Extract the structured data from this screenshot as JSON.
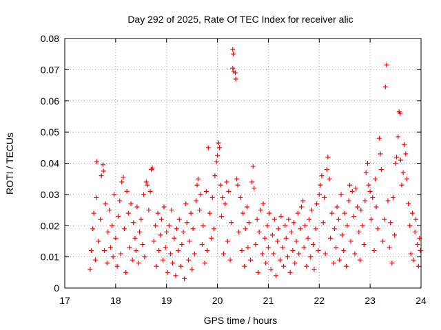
{
  "chart_data": {
    "type": "scatter",
    "title": "Day 292 of 2025, Rate Of TEC Index for receiver alic",
    "xlabel": "GPS time / hours",
    "ylabel": "ROTI / TECUs",
    "xlim": [
      17,
      24
    ],
    "ylim": [
      0,
      0.08
    ],
    "x_ticks": [
      17,
      18,
      19,
      20,
      21,
      22,
      23,
      24
    ],
    "x_tick_labels": [
      "17",
      "18",
      "19",
      "20",
      "21",
      "22",
      "23",
      "24"
    ],
    "y_ticks": [
      0,
      0.01,
      0.02,
      0.03,
      0.04,
      0.05,
      0.06,
      0.07,
      0.08
    ],
    "y_tick_labels": [
      "0",
      "0.01",
      "0.02",
      "0.03",
      "0.04",
      "0.05",
      "0.06",
      "0.07",
      "0.08"
    ],
    "grid": true,
    "marker": "+",
    "color": "#ff0000",
    "series": [
      {
        "name": "ROTI",
        "points": [
          [
            17.5,
            0.006
          ],
          [
            17.52,
            0.012
          ],
          [
            17.55,
            0.019
          ],
          [
            17.57,
            0.024
          ],
          [
            17.6,
            0.009
          ],
          [
            17.62,
            0.029
          ],
          [
            17.63,
            0.0405
          ],
          [
            17.66,
            0.015
          ],
          [
            17.7,
            0.022
          ],
          [
            17.72,
            0.036
          ],
          [
            17.75,
            0.0395
          ],
          [
            17.76,
            0.0375
          ],
          [
            17.78,
            0.012
          ],
          [
            17.8,
            0.027
          ],
          [
            17.83,
            0.008
          ],
          [
            17.85,
            0.018
          ],
          [
            17.88,
            0.025
          ],
          [
            17.9,
            0.013
          ],
          [
            17.93,
            0.02
          ],
          [
            17.95,
            0.01
          ],
          [
            17.97,
            0.03
          ],
          [
            18.0,
            0.016
          ],
          [
            18.03,
            0.007
          ],
          [
            18.05,
            0.023
          ],
          [
            18.08,
            0.028
          ],
          [
            18.1,
            0.011
          ],
          [
            18.12,
            0.034
          ],
          [
            18.15,
            0.0355
          ],
          [
            18.17,
            0.019
          ],
          [
            18.2,
            0.005
          ],
          [
            18.22,
            0.031
          ],
          [
            18.25,
            0.024
          ],
          [
            18.27,
            0.013
          ],
          [
            18.3,
            0.027
          ],
          [
            18.33,
            0.009
          ],
          [
            18.35,
            0.021
          ],
          [
            18.38,
            0.016
          ],
          [
            18.4,
            0.012
          ],
          [
            18.42,
            0.026
          ],
          [
            18.45,
            0.008
          ],
          [
            18.47,
            0.018
          ],
          [
            18.5,
            0.022
          ],
          [
            18.53,
            0.014
          ],
          [
            18.55,
            0.03
          ],
          [
            18.57,
            0.01
          ],
          [
            18.6,
            0.034
          ],
          [
            18.62,
            0.033
          ],
          [
            18.65,
            0.025
          ],
          [
            18.68,
            0.031
          ],
          [
            18.7,
            0.038
          ],
          [
            18.72,
            0.0385
          ],
          [
            18.75,
            0.015
          ],
          [
            18.78,
            0.02
          ],
          [
            18.8,
            0.007
          ],
          [
            18.83,
            0.024
          ],
          [
            18.85,
            0.012
          ],
          [
            18.88,
            0.017
          ],
          [
            18.9,
            0.022
          ],
          [
            18.93,
            0.009
          ],
          [
            18.95,
            0.026
          ],
          [
            18.98,
            0.013
          ],
          [
            19.0,
            0.018
          ],
          [
            19.02,
            0.005
          ],
          [
            19.05,
            0.02
          ],
          [
            19.08,
            0.011
          ],
          [
            19.1,
            0.025
          ],
          [
            19.12,
            0.008
          ],
          [
            19.15,
            0.016
          ],
          [
            19.18,
            0.004
          ],
          [
            19.2,
            0.019
          ],
          [
            19.23,
            0.012
          ],
          [
            19.25,
            0.022
          ],
          [
            19.28,
            0.007
          ],
          [
            19.3,
            0.014
          ],
          [
            19.33,
            0.018
          ],
          [
            19.35,
            0.003
          ],
          [
            19.38,
            0.027
          ],
          [
            19.4,
            0.021
          ],
          [
            19.43,
            0.009
          ],
          [
            19.45,
            0.015
          ],
          [
            19.48,
            0.024
          ],
          [
            19.5,
            0.006
          ],
          [
            19.52,
            0.019
          ],
          [
            19.55,
            0.011
          ],
          [
            19.58,
            0.028
          ],
          [
            19.6,
            0.033
          ],
          [
            19.62,
            0.035
          ],
          [
            19.65,
            0.025
          ],
          [
            19.67,
            0.03
          ],
          [
            19.7,
            0.014
          ],
          [
            19.72,
            0.02
          ],
          [
            19.75,
            0.008
          ],
          [
            19.78,
            0.031
          ],
          [
            19.8,
            0.012
          ],
          [
            19.82,
            0.045
          ],
          [
            19.85,
            0.024
          ],
          [
            19.88,
            0.016
          ],
          [
            19.9,
            0.029
          ],
          [
            19.93,
            0.019
          ],
          [
            19.95,
            0.036
          ],
          [
            19.98,
            0.0405
          ],
          [
            20.0,
            0.0425
          ],
          [
            20.02,
            0.0465
          ],
          [
            20.04,
            0.045
          ],
          [
            20.06,
            0.033
          ],
          [
            20.08,
            0.023
          ],
          [
            20.1,
            0.029
          ],
          [
            20.12,
            0.011
          ],
          [
            20.15,
            0.027
          ],
          [
            20.18,
            0.034
          ],
          [
            20.2,
            0.015
          ],
          [
            20.22,
            0.031
          ],
          [
            20.25,
            0.009
          ],
          [
            20.27,
            0.021
          ],
          [
            20.3,
            0.0765
          ],
          [
            20.31,
            0.075
          ],
          [
            20.3,
            0.0705
          ],
          [
            20.32,
            0.0695
          ],
          [
            20.35,
            0.069
          ],
          [
            20.36,
            0.067
          ],
          [
            20.38,
            0.035
          ],
          [
            20.4,
            0.033
          ],
          [
            20.42,
            0.018
          ],
          [
            20.45,
            0.029
          ],
          [
            20.48,
            0.012
          ],
          [
            20.5,
            0.024
          ],
          [
            20.53,
            0.007
          ],
          [
            20.55,
            0.019
          ],
          [
            20.58,
            0.026
          ],
          [
            20.6,
            0.013
          ],
          [
            20.62,
            0.021
          ],
          [
            20.65,
            0.009
          ],
          [
            20.68,
            0.034
          ],
          [
            20.7,
            0.039
          ],
          [
            20.72,
            0.032
          ],
          [
            20.75,
            0.014
          ],
          [
            20.78,
            0.022
          ],
          [
            20.8,
            0.005
          ],
          [
            20.82,
            0.018
          ],
          [
            20.85,
            0.025
          ],
          [
            20.88,
            0.011
          ],
          [
            20.9,
            0.027
          ],
          [
            20.93,
            0.016
          ],
          [
            20.95,
            0.008
          ],
          [
            20.98,
            0.02
          ],
          [
            21.0,
            0.013
          ],
          [
            21.02,
            0.024
          ],
          [
            21.05,
            0.006
          ],
          [
            21.08,
            0.017
          ],
          [
            21.1,
            0.011
          ],
          [
            21.12,
            0.022
          ],
          [
            21.15,
            0.004
          ],
          [
            21.18,
            0.015
          ],
          [
            21.2,
            0.019
          ],
          [
            21.23,
            0.009
          ],
          [
            21.25,
            0.023
          ],
          [
            21.28,
            0.013
          ],
          [
            21.3,
            0.007
          ],
          [
            21.33,
            0.02
          ],
          [
            21.35,
            0.016
          ],
          [
            21.38,
            0.01
          ],
          [
            21.4,
            0.022
          ],
          [
            21.43,
            0.005
          ],
          [
            21.45,
            0.018
          ],
          [
            21.48,
            0.012
          ],
          [
            21.5,
            0.021
          ],
          [
            21.52,
            0.008
          ],
          [
            21.55,
            0.015
          ],
          [
            21.58,
            0.024
          ],
          [
            21.6,
            0.011
          ],
          [
            21.63,
            0.019
          ],
          [
            21.65,
            0.026
          ],
          [
            21.68,
            0.028
          ],
          [
            21.7,
            0.013
          ],
          [
            21.72,
            0.02
          ],
          [
            21.75,
            0.007
          ],
          [
            21.78,
            0.016
          ],
          [
            21.8,
            0.022
          ],
          [
            21.83,
            0.01
          ],
          [
            21.85,
            0.025
          ],
          [
            21.88,
            0.014
          ],
          [
            21.9,
            0.006
          ],
          [
            21.93,
            0.019
          ],
          [
            21.95,
            0.027
          ],
          [
            21.98,
            0.012
          ],
          [
            22.0,
            0.03
          ],
          [
            22.02,
            0.033
          ],
          [
            22.05,
            0.036
          ],
          [
            22.08,
            0.021
          ],
          [
            22.1,
            0.029
          ],
          [
            22.12,
            0.011
          ],
          [
            22.15,
            0.038
          ],
          [
            22.17,
            0.042
          ],
          [
            22.2,
            0.035
          ],
          [
            22.22,
            0.016
          ],
          [
            22.25,
            0.024
          ],
          [
            22.28,
            0.008
          ],
          [
            22.3,
            0.019
          ],
          [
            22.33,
            0.013
          ],
          [
            22.35,
            0.026
          ],
          [
            22.38,
            0.022
          ],
          [
            22.4,
            0.009
          ],
          [
            22.43,
            0.03
          ],
          [
            22.45,
            0.017
          ],
          [
            22.48,
            0.012
          ],
          [
            22.5,
            0.024
          ],
          [
            22.53,
            0.007
          ],
          [
            22.55,
            0.02
          ],
          [
            22.58,
            0.028
          ],
          [
            22.6,
            0.033
          ],
          [
            22.62,
            0.015
          ],
          [
            22.65,
            0.031
          ],
          [
            22.68,
            0.023
          ],
          [
            22.7,
            0.011
          ],
          [
            22.72,
            0.032
          ],
          [
            22.75,
            0.026
          ],
          [
            22.78,
            0.018
          ],
          [
            22.8,
            0.009
          ],
          [
            22.82,
            0.025
          ],
          [
            22.85,
            0.02
          ],
          [
            22.88,
            0.014
          ],
          [
            22.9,
            0.028
          ],
          [
            22.92,
            0.037
          ],
          [
            22.95,
            0.04
          ],
          [
            22.97,
            0.033
          ],
          [
            23.0,
            0.031
          ],
          [
            23.02,
            0.022
          ],
          [
            23.05,
            0.029
          ],
          [
            23.08,
            0.012
          ],
          [
            23.1,
            0.035
          ],
          [
            23.12,
            0.026
          ],
          [
            23.15,
            0.019
          ],
          [
            23.18,
            0.048
          ],
          [
            23.2,
            0.043
          ],
          [
            23.22,
            0.038
          ],
          [
            23.25,
            0.015
          ],
          [
            23.28,
            0.022
          ],
          [
            23.3,
            0.0645
          ],
          [
            23.32,
            0.0715
          ],
          [
            23.35,
            0.028
          ],
          [
            23.38,
            0.013
          ],
          [
            23.4,
            0.021
          ],
          [
            23.43,
            0.008
          ],
          [
            23.45,
            0.029
          ],
          [
            23.48,
            0.017
          ],
          [
            23.5,
            0.04
          ],
          [
            23.52,
            0.042
          ],
          [
            23.55,
            0.0485
          ],
          [
            23.57,
            0.0565
          ],
          [
            23.59,
            0.056
          ],
          [
            23.6,
            0.041
          ],
          [
            23.62,
            0.033
          ],
          [
            23.65,
            0.037
          ],
          [
            23.67,
            0.046
          ],
          [
            23.7,
            0.043
          ],
          [
            23.72,
            0.035
          ],
          [
            23.75,
            0.027
          ],
          [
            23.78,
            0.02
          ],
          [
            23.8,
            0.011
          ],
          [
            23.83,
            0.024
          ],
          [
            23.85,
            0.009
          ],
          [
            23.88,
            0.018
          ],
          [
            23.9,
            0.022
          ],
          [
            23.93,
            0.014
          ],
          [
            23.95,
            0.007
          ],
          [
            23.97,
            0.016
          ],
          [
            23.99,
            0.012
          ]
        ]
      }
    ]
  }
}
